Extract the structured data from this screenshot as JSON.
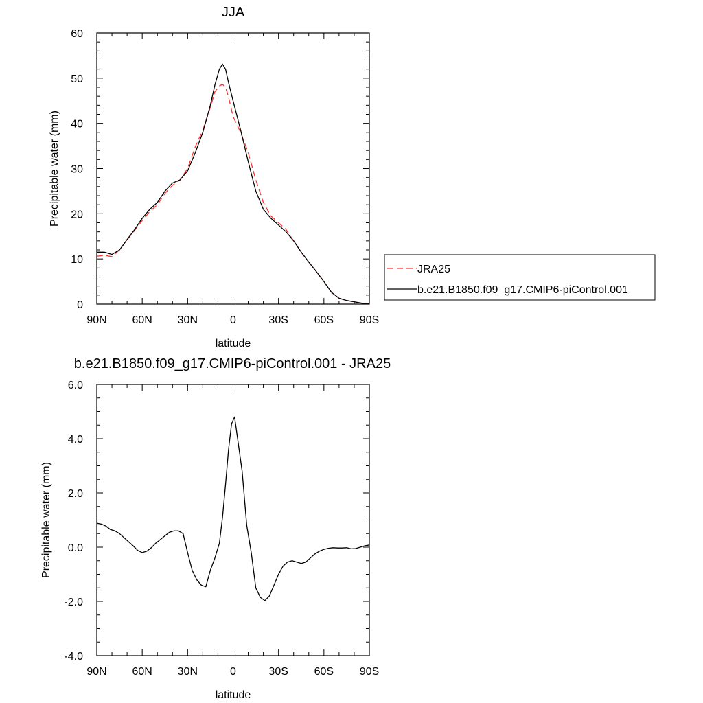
{
  "chart_data": [
    {
      "type": "line",
      "title": "JJA",
      "xlabel": "latitude",
      "ylabel": "Precipitable water (mm)",
      "xlim": [
        90,
        -90
      ],
      "ylim": [
        0,
        60
      ],
      "x_ticks": [
        90,
        60,
        30,
        0,
        -30,
        -60,
        -90
      ],
      "x_tick_labels": [
        "90N",
        "60N",
        "30N",
        "0",
        "30S",
        "60S",
        "90S"
      ],
      "y_ticks": [
        0,
        10,
        20,
        30,
        40,
        50,
        60
      ],
      "y_tick_labels": [
        "0",
        "10",
        "20",
        "30",
        "40",
        "50",
        "60"
      ],
      "grid": false,
      "legend_placement": "right",
      "series": [
        {
          "name": "JRA25",
          "color": "#ff3030",
          "dash": "dashed",
          "x": [
            90,
            85,
            80,
            75,
            70,
            65,
            60,
            55,
            50,
            45,
            40,
            35,
            30,
            25,
            20,
            15,
            12,
            9,
            7,
            5,
            3,
            0,
            -5,
            -10,
            -15,
            -20,
            -25,
            -30,
            -35,
            -40,
            -45,
            -50,
            -55,
            -60,
            -65,
            -70,
            -75,
            -80,
            -85,
            -90
          ],
          "values": [
            10.6,
            10.8,
            10.5,
            12.0,
            14.2,
            16.3,
            18.5,
            20.5,
            22.0,
            24.5,
            26.3,
            27.5,
            30.0,
            34.8,
            38.5,
            43.5,
            47.0,
            48.3,
            48.6,
            48.0,
            45.8,
            41.5,
            38.0,
            33.5,
            27.5,
            22.5,
            19.5,
            18.0,
            16.5,
            14.0,
            11.5,
            9.3,
            7.2,
            5.0,
            2.6,
            1.3,
            0.8,
            0.5,
            0.2,
            0.1
          ]
        },
        {
          "name": "b.e21.B1850.f09_g17.CMIP6-piControl.001",
          "color": "#000000",
          "dash": "solid",
          "x": [
            90,
            85,
            80,
            75,
            70,
            65,
            60,
            55,
            50,
            45,
            40,
            35,
            30,
            25,
            20,
            15,
            12,
            9,
            7,
            5,
            3,
            0,
            -5,
            -10,
            -15,
            -20,
            -25,
            -30,
            -35,
            -40,
            -45,
            -50,
            -55,
            -60,
            -65,
            -70,
            -75,
            -80,
            -85,
            -90
          ],
          "values": [
            11.5,
            11.5,
            11.0,
            12.0,
            14.3,
            16.5,
            19.0,
            21.0,
            22.5,
            25.0,
            26.8,
            27.5,
            29.5,
            33.5,
            38.0,
            44.0,
            48.5,
            52.0,
            53.1,
            52.0,
            49.0,
            45.0,
            38.5,
            31.5,
            25.0,
            21.0,
            19.0,
            17.5,
            16.0,
            14.0,
            11.5,
            9.3,
            7.2,
            5.0,
            2.6,
            1.3,
            0.8,
            0.5,
            0.2,
            0.1
          ]
        }
      ]
    },
    {
      "type": "line",
      "title": "b.e21.B1850.f09_g17.CMIP6-piControl.001 - JRA25",
      "xlabel": "latitude",
      "ylabel": "Precipitable water (mm)",
      "xlim": [
        90,
        -90
      ],
      "ylim": [
        -4.0,
        6.0
      ],
      "x_ticks": [
        90,
        60,
        30,
        0,
        -30,
        -60,
        -90
      ],
      "x_tick_labels": [
        "90N",
        "60N",
        "30N",
        "0",
        "30S",
        "60S",
        "90S"
      ],
      "y_ticks": [
        -4.0,
        -2.0,
        0.0,
        2.0,
        4.0,
        6.0
      ],
      "y_tick_labels": [
        "-4.0",
        "-2.0",
        "0.0",
        "2.0",
        "4.0",
        "6.0"
      ],
      "grid": false,
      "series": [
        {
          "color": "#000000",
          "dash": "solid",
          "x": [
            90,
            87,
            84,
            81,
            78,
            75,
            72,
            69,
            66,
            63,
            60,
            57,
            54,
            51,
            48,
            45,
            42,
            39,
            36,
            33,
            30,
            27,
            24,
            21,
            18,
            15,
            12,
            9,
            7,
            5,
            3,
            1,
            -1,
            -3,
            -6,
            -9,
            -12,
            -15,
            -18,
            -21,
            -24,
            -27,
            -30,
            -33,
            -36,
            -39,
            -42,
            -45,
            -48,
            -51,
            -54,
            -57,
            -60,
            -63,
            -66,
            -69,
            -72,
            -75,
            -78,
            -81,
            -84,
            -87,
            -90
          ],
          "values": [
            0.88,
            0.85,
            0.78,
            0.65,
            0.6,
            0.5,
            0.35,
            0.2,
            0.05,
            -0.12,
            -0.2,
            -0.15,
            -0.02,
            0.15,
            0.28,
            0.42,
            0.55,
            0.6,
            0.6,
            0.5,
            -0.2,
            -0.85,
            -1.2,
            -1.4,
            -1.46,
            -0.85,
            -0.4,
            0.15,
            1.1,
            2.3,
            3.6,
            4.55,
            4.8,
            4.0,
            2.8,
            0.8,
            -0.2,
            -1.5,
            -1.85,
            -1.97,
            -1.8,
            -1.4,
            -1.0,
            -0.7,
            -0.55,
            -0.5,
            -0.55,
            -0.6,
            -0.55,
            -0.4,
            -0.25,
            -0.15,
            -0.08,
            -0.04,
            -0.02,
            -0.03,
            -0.03,
            -0.02,
            -0.06,
            -0.05,
            0.0,
            0.05,
            0.08
          ]
        }
      ]
    }
  ]
}
